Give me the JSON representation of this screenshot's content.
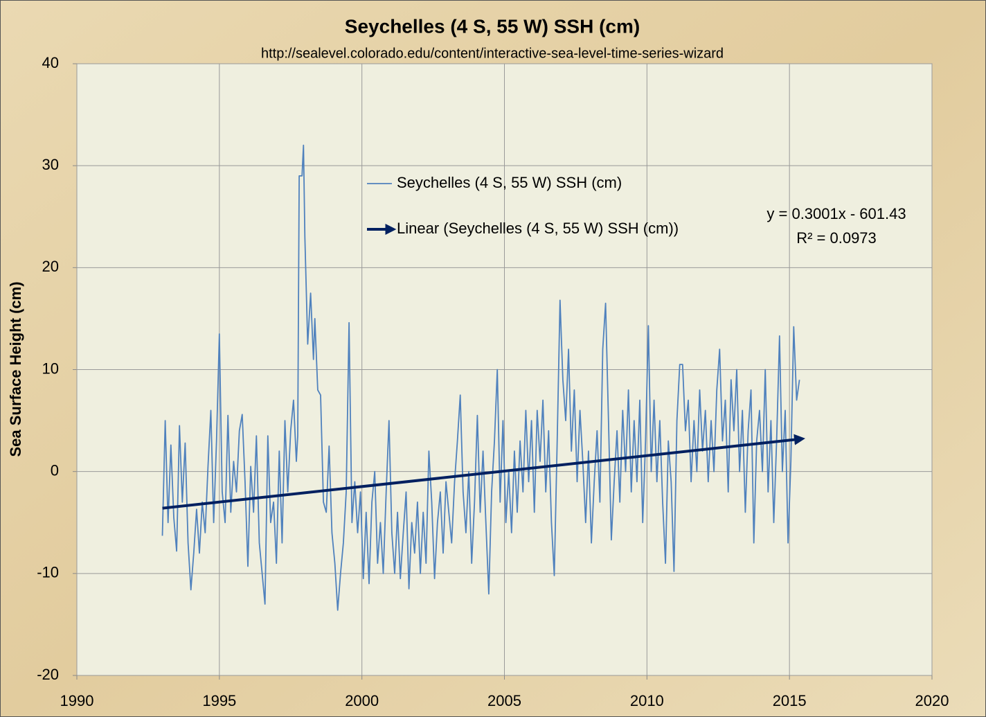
{
  "chart_data": {
    "type": "line",
    "title": "Seychelles (4 S, 55 W) SSH (cm)",
    "subtitle": "http://sealevel.colorado.edu/content/interactive-sea-level-time-series-wizard",
    "y_label": "Sea Surface Height (cm)",
    "xlim": [
      1990,
      2020
    ],
    "xticks": [
      1990,
      1995,
      2000,
      2005,
      2010,
      2015,
      2020
    ],
    "ylim": [
      -20,
      40
    ],
    "yticks": [
      -20,
      -10,
      0,
      10,
      20,
      30,
      40
    ],
    "grid": true,
    "trend_equation": "y = 0.3001x - 601.43",
    "trend_r2": "R² = 0.0973",
    "series": [
      {
        "name": "Seychelles (4 S, 55 W) SSH (cm)",
        "color": "#4f81bd",
        "x": [
          1993.0,
          1993.1,
          1993.2,
          1993.3,
          1993.4,
          1993.5,
          1993.6,
          1993.7,
          1993.8,
          1993.9,
          1994.0,
          1994.1,
          1994.2,
          1994.3,
          1994.4,
          1994.5,
          1994.6,
          1994.7,
          1994.8,
          1994.9,
          1995.0,
          1995.1,
          1995.2,
          1995.3,
          1995.4,
          1995.5,
          1995.6,
          1995.7,
          1995.8,
          1995.9,
          1996.0,
          1996.1,
          1996.2,
          1996.3,
          1996.4,
          1996.5,
          1996.6,
          1996.7,
          1996.8,
          1996.9,
          1997.0,
          1997.1,
          1997.2,
          1997.3,
          1997.4,
          1997.5,
          1997.6,
          1997.7,
          1997.75,
          1997.8,
          1997.9,
          1997.95,
          1998.0,
          1998.1,
          1998.2,
          1998.3,
          1998.35,
          1998.45,
          1998.55,
          1998.65,
          1998.75,
          1998.85,
          1998.95,
          1999.05,
          1999.15,
          1999.25,
          1999.35,
          1999.45,
          1999.55,
          1999.65,
          1999.75,
          1999.85,
          1999.95,
          2000.05,
          2000.15,
          2000.25,
          2000.35,
          2000.45,
          2000.55,
          2000.65,
          2000.75,
          2000.85,
          2000.95,
          2001.05,
          2001.15,
          2001.25,
          2001.35,
          2001.45,
          2001.55,
          2001.65,
          2001.75,
          2001.85,
          2001.95,
          2002.05,
          2002.15,
          2002.25,
          2002.35,
          2002.45,
          2002.55,
          2002.65,
          2002.75,
          2002.85,
          2002.95,
          2003.05,
          2003.15,
          2003.25,
          2003.35,
          2003.45,
          2003.55,
          2003.65,
          2003.75,
          2003.85,
          2003.95,
          2004.05,
          2004.15,
          2004.25,
          2004.35,
          2004.45,
          2004.55,
          2004.65,
          2004.75,
          2004.85,
          2004.95,
          2005.05,
          2005.15,
          2005.25,
          2005.35,
          2005.45,
          2005.55,
          2005.65,
          2005.75,
          2005.85,
          2005.95,
          2006.05,
          2006.15,
          2006.25,
          2006.35,
          2006.45,
          2006.55,
          2006.65,
          2006.75,
          2006.85,
          2006.95,
          2007.05,
          2007.15,
          2007.25,
          2007.35,
          2007.45,
          2007.55,
          2007.65,
          2007.75,
          2007.85,
          2007.95,
          2008.05,
          2008.15,
          2008.25,
          2008.35,
          2008.45,
          2008.55,
          2008.65,
          2008.75,
          2008.85,
          2008.95,
          2009.05,
          2009.15,
          2009.25,
          2009.35,
          2009.45,
          2009.55,
          2009.65,
          2009.75,
          2009.85,
          2009.95,
          2010.05,
          2010.15,
          2010.25,
          2010.35,
          2010.45,
          2010.55,
          2010.65,
          2010.75,
          2010.85,
          2010.95,
          2011.05,
          2011.15,
          2011.25,
          2011.35,
          2011.45,
          2011.55,
          2011.65,
          2011.75,
          2011.85,
          2011.95,
          2012.05,
          2012.15,
          2012.25,
          2012.35,
          2012.45,
          2012.55,
          2012.65,
          2012.75,
          2012.85,
          2012.95,
          2013.05,
          2013.15,
          2013.25,
          2013.35,
          2013.45,
          2013.55,
          2013.65,
          2013.75,
          2013.85,
          2013.95,
          2014.05,
          2014.15,
          2014.25,
          2014.35,
          2014.45,
          2014.55,
          2014.65,
          2014.75,
          2014.85,
          2014.95,
          2015.05,
          2015.15,
          2015.25,
          2015.35
        ],
        "values": [
          -6.3,
          5.0,
          -5.0,
          2.6,
          -4.5,
          -7.8,
          4.5,
          -3.0,
          2.8,
          -7.0,
          -11.6,
          -8.0,
          -3.7,
          -8.0,
          -3.0,
          -6.0,
          0.5,
          6.0,
          -5.0,
          3.0,
          13.5,
          -2.0,
          -5.0,
          5.5,
          -4.0,
          1.0,
          -2.0,
          4.0,
          5.6,
          -1.0,
          -9.3,
          0.5,
          -4.0,
          3.5,
          -7.0,
          -10.0,
          -13.0,
          3.5,
          -5.0,
          -3.0,
          -9.0,
          2.0,
          -7.0,
          5.0,
          -2.0,
          4.0,
          7.0,
          1.0,
          3.5,
          29.0,
          29.0,
          32.0,
          23.0,
          12.5,
          17.5,
          11.0,
          15.0,
          8.0,
          7.5,
          -3.0,
          -4.0,
          2.5,
          -6.0,
          -9.0,
          -13.6,
          -10.0,
          -7.0,
          -2.0,
          14.6,
          -5.0,
          -1.0,
          -6.0,
          -2.0,
          -10.5,
          -4.0,
          -11.0,
          -3.0,
          0.0,
          -9.0,
          -5.0,
          -10.0,
          -2.0,
          5.0,
          -6.0,
          -10.0,
          -4.0,
          -10.5,
          -6.0,
          -2.0,
          -11.5,
          -5.0,
          -8.0,
          -3.0,
          -10.0,
          -4.0,
          -9.0,
          2.0,
          -3.0,
          -10.5,
          -5.0,
          -2.0,
          -8.0,
          -1.0,
          -4.0,
          -7.0,
          -1.0,
          3.0,
          7.5,
          -2.0,
          -6.0,
          0.0,
          -9.0,
          -3.0,
          5.5,
          -4.0,
          2.0,
          -5.0,
          -12.0,
          -2.0,
          3.0,
          10.0,
          -3.0,
          5.0,
          -5.0,
          0.0,
          -6.0,
          2.0,
          -4.0,
          3.0,
          -2.0,
          6.0,
          -1.0,
          5.0,
          -4.0,
          6.0,
          1.0,
          7.0,
          -2.0,
          4.0,
          -5.0,
          -10.2,
          3.0,
          16.8,
          9.0,
          5.0,
          12.0,
          2.0,
          8.0,
          -1.0,
          6.0,
          1.0,
          -5.0,
          2.0,
          -7.0,
          -1.0,
          4.0,
          -3.0,
          12.0,
          16.5,
          5.0,
          -6.7,
          -1.0,
          4.0,
          -3.0,
          6.0,
          0.0,
          8.0,
          -2.0,
          5.0,
          -1.0,
          7.0,
          -5.0,
          3.0,
          14.3,
          0.0,
          7.0,
          -1.0,
          5.0,
          -3.0,
          -9.0,
          3.0,
          -1.0,
          -9.8,
          5.0,
          10.5,
          10.5,
          4.0,
          7.0,
          -1.0,
          5.0,
          0.0,
          8.0,
          2.0,
          6.0,
          -1.0,
          5.0,
          0.0,
          8.0,
          12.0,
          3.0,
          7.0,
          -2.0,
          9.0,
          4.0,
          10.0,
          0.0,
          6.0,
          -4.0,
          4.0,
          8.0,
          -7.0,
          3.0,
          6.0,
          0.0,
          10.0,
          -2.0,
          5.0,
          -5.0,
          3.0,
          13.3,
          0.0,
          6.0,
          -7.0,
          1.0,
          14.2,
          7.0,
          9.0
        ]
      },
      {
        "name": "Linear (Seychelles (4 S, 55 W) SSH (cm))",
        "color": "#002060",
        "trendline": true,
        "x": [
          1993.0,
          2015.4
        ],
        "values": [
          -3.6,
          3.2
        ]
      }
    ]
  }
}
